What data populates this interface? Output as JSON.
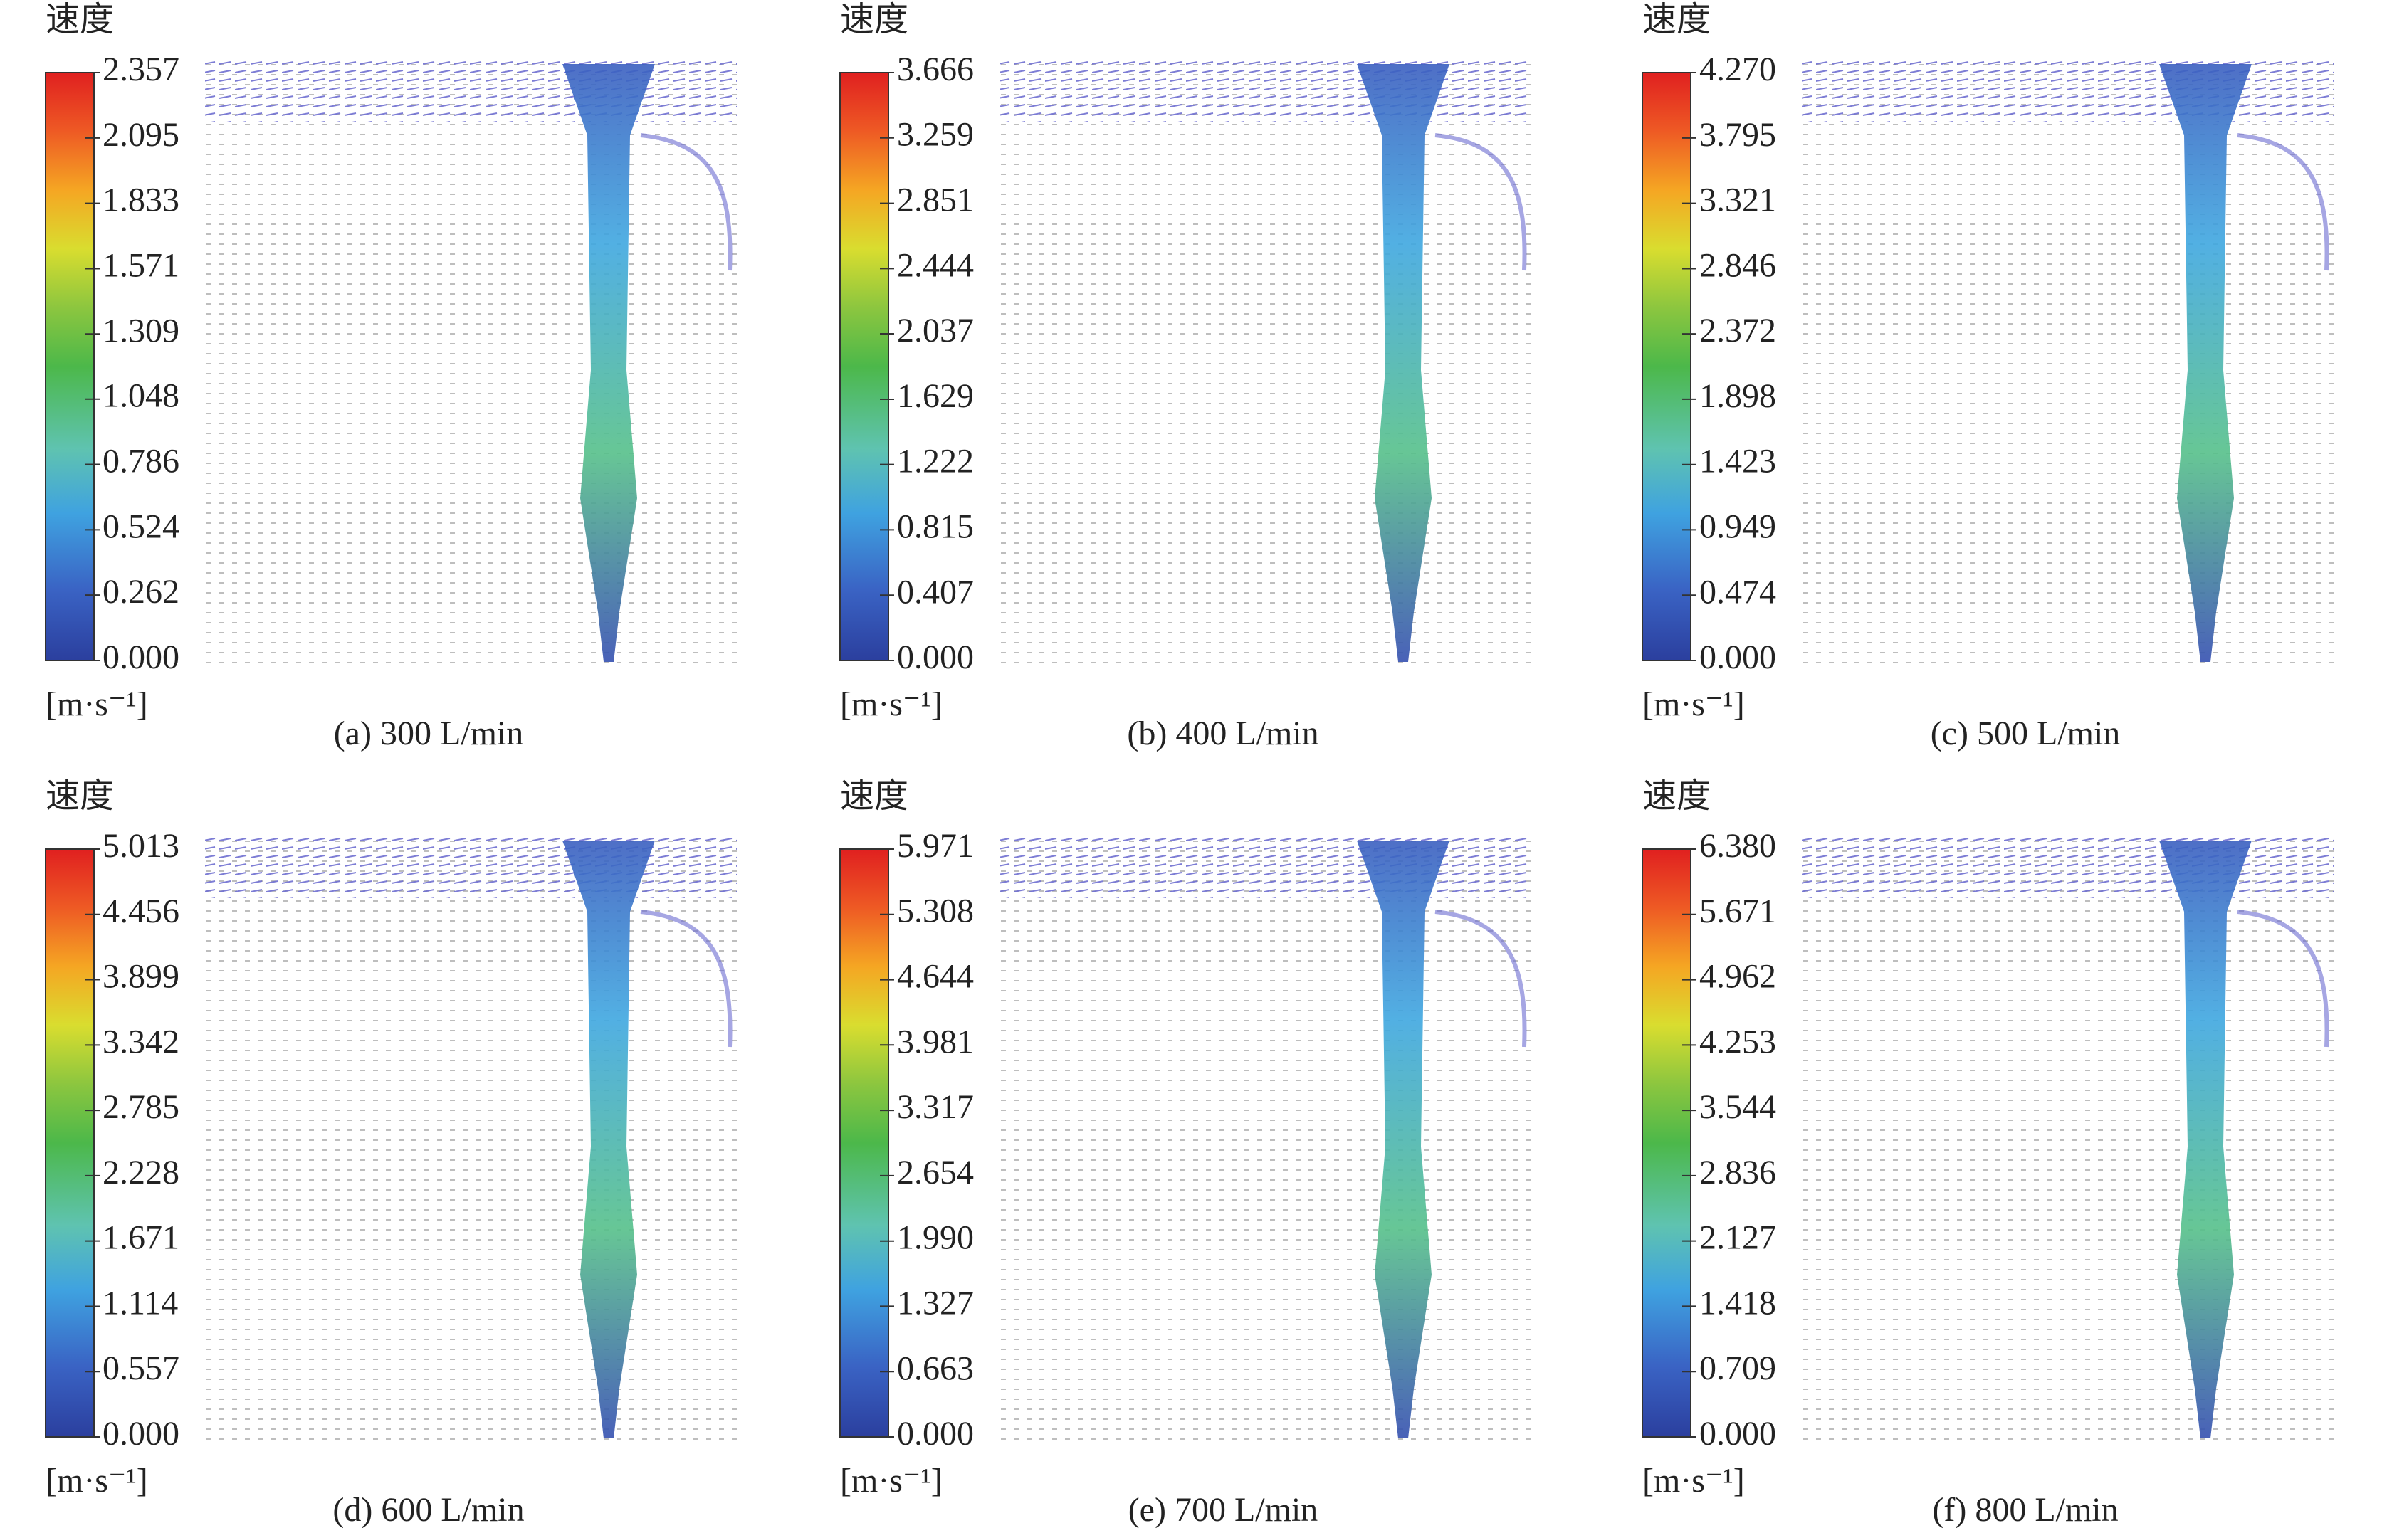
{
  "chart_data": [
    {
      "type": "vector-field",
      "title": "速度",
      "unit": "[m·s⁻¹]",
      "caption": "(a) 300 L/min",
      "clim": [
        0,
        2.357
      ],
      "cticks": [
        {
          "value": 0,
          "label": "0.000"
        },
        0.262,
        0.524,
        0.786,
        1.048,
        1.309,
        1.571,
        1.833,
        2.095,
        2.357
      ]
    },
    {
      "type": "vector-field",
      "title": "速度",
      "unit": "[m·s⁻¹]",
      "caption": "(b) 400 L/min",
      "clim": [
        0,
        3.666
      ],
      "cticks": [
        {
          "value": 0,
          "label": "0.000"
        },
        0.407,
        0.815,
        1.222,
        1.629,
        2.037,
        2.444,
        2.851,
        3.259,
        3.666
      ]
    },
    {
      "type": "vector-field",
      "title": "速度",
      "unit": "[m·s⁻¹]",
      "caption": "(c) 500 L/min",
      "clim": [
        0,
        4.27
      ],
      "cticks": [
        {
          "value": 0,
          "label": "0.000"
        },
        0.474,
        0.949,
        1.423,
        1.898,
        2.372,
        2.846,
        3.321,
        3.795,
        {
          "value": 4.27,
          "label": "4.270"
        }
      ]
    },
    {
      "type": "vector-field",
      "title": "速度",
      "unit": "[m·s⁻¹]",
      "caption": "(d) 600 L/min",
      "clim": [
        0,
        5.013
      ],
      "cticks": [
        {
          "value": 0,
          "label": "0.000"
        },
        0.557,
        1.114,
        1.671,
        2.228,
        2.785,
        3.342,
        3.899,
        4.456,
        5.013
      ]
    },
    {
      "type": "vector-field",
      "title": "速度",
      "unit": "[m·s⁻¹]",
      "caption": "(e) 700 L/min",
      "clim": [
        0,
        5.971
      ],
      "cticks": [
        {
          "value": 0,
          "label": "0.000"
        },
        0.663,
        1.327,
        {
          "value": 1.99,
          "label": "1.990"
        },
        2.654,
        3.317,
        3.981,
        4.644,
        5.308,
        5.971
      ]
    },
    {
      "type": "vector-field",
      "title": "速度",
      "unit": "[m·s⁻¹]",
      "caption": "(f) 800 L/min",
      "clim": [
        0,
        6.38
      ],
      "cticks": [
        {
          "value": 0,
          "label": "0.000"
        },
        0.709,
        1.418,
        2.127,
        2.836,
        3.544,
        4.253,
        4.962,
        5.671,
        {
          "value": 6.38,
          "label": "6.380"
        }
      ]
    }
  ]
}
